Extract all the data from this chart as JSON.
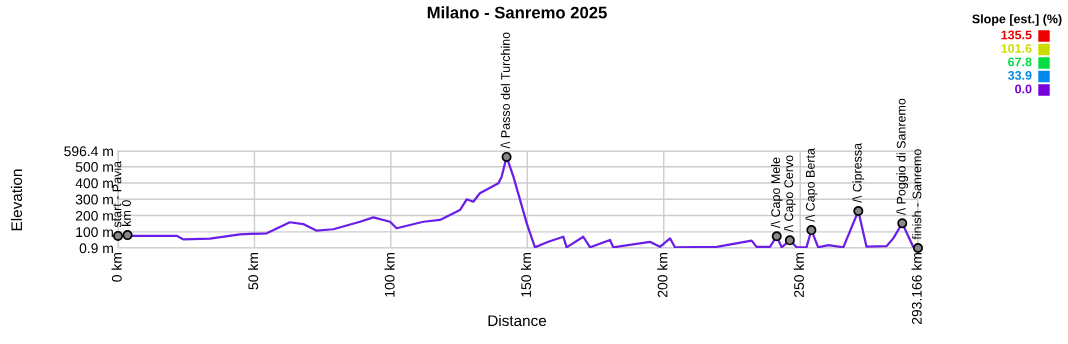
{
  "chart_data": {
    "type": "line",
    "title": "Milano - Sanremo 2025",
    "xlabel": "Distance",
    "ylabel": "Elevation",
    "x": [
      0,
      21.5,
      23.9,
      33.7,
      44.7,
      54.5,
      63.0,
      67.9,
      72.8,
      78.9,
      88.7,
      93.6,
      99.7,
      102.1,
      111.9,
      118.0,
      125.3,
      127.8,
      130.2,
      132.6,
      139.4,
      140.6,
      142.4,
      144.9,
      149.8,
      152.8,
      157.7,
      163.2,
      164.4,
      170.5,
      173.0,
      180.3,
      181.5,
      194.9,
      198.6,
      202.3,
      204.1,
      219.4,
      232.2,
      234.0,
      238.9,
      241.4,
      243.2,
      246.2,
      248.7,
      252.3,
      254.1,
      256.6,
      260.3,
      265.8,
      271.3,
      274.3,
      281.7,
      284.1,
      287.4,
      291.4,
      293.166
    ],
    "series": [
      {
        "color": "#6a1ee8",
        "values": [
          75,
          76,
          54,
          58,
          85,
          91,
          159,
          148,
          107,
          116,
          162,
          189,
          162,
          122,
          162,
          173,
          234,
          300,
          285,
          337,
          398,
          439,
          560,
          439,
          152,
          5,
          39,
          70,
          5,
          70,
          5,
          50,
          5,
          39,
          8,
          60,
          5,
          8,
          46,
          8,
          8,
          73,
          5,
          48,
          5,
          5,
          111,
          5,
          19,
          5,
          228,
          9,
          13,
          60,
          153,
          9,
          1
        ]
      }
    ],
    "xlim": [
      0,
      293.166
    ],
    "ylim": [
      0.9,
      596.4
    ],
    "xticks": [
      {
        "value": 0,
        "label": "0 km"
      },
      {
        "value": 50,
        "label": "50 km"
      },
      {
        "value": 100,
        "label": "100 km"
      },
      {
        "value": 150,
        "label": "150 km"
      },
      {
        "value": 200,
        "label": "200 km"
      },
      {
        "value": 250,
        "label": "250 km"
      },
      {
        "value": 293.166,
        "label": "293.166 km"
      }
    ],
    "yticks": [
      {
        "value": 0.9,
        "label": "0.9 m"
      },
      {
        "value": 100,
        "label": "100 m"
      },
      {
        "value": 200,
        "label": "200 m"
      },
      {
        "value": 300,
        "label": "300 m"
      },
      {
        "value": 400,
        "label": "400 m"
      },
      {
        "value": 500,
        "label": "500 m"
      },
      {
        "value": 596.4,
        "label": "596.4 m"
      }
    ],
    "grid": true,
    "marker": "none",
    "line_style": "solid",
    "clabel": "Slope [est.] (%)",
    "clim": [
      0,
      135.5
    ],
    "cticks": [
      135.5,
      101.6,
      67.8,
      33.9,
      {
        "value": 0,
        "label": "0.0"
      }
    ],
    "annotations": [
      {
        "text": "start - Pavia",
        "x": 0,
        "y": 75
      },
      {
        "text": "km 0",
        "x": 3.5,
        "y": 80
      },
      {
        "text": "/\\ Passo del Turchino",
        "x": 142.4,
        "y": 560
      },
      {
        "text": "/\\ Capo Mele",
        "x": 241.4,
        "y": 73
      },
      {
        "text": "/\\ Capo Cervo",
        "x": 246.2,
        "y": 48
      },
      {
        "text": "/\\ Capo Berta",
        "x": 254.1,
        "y": 111
      },
      {
        "text": "/\\ Cipressa",
        "x": 271.3,
        "y": 228
      },
      {
        "text": "/\\ Poggio di Sanremo",
        "x": 287.4,
        "y": 153
      },
      {
        "text": "finish - Sanremo",
        "x": 293.166,
        "y": 1
      }
    ]
  }
}
